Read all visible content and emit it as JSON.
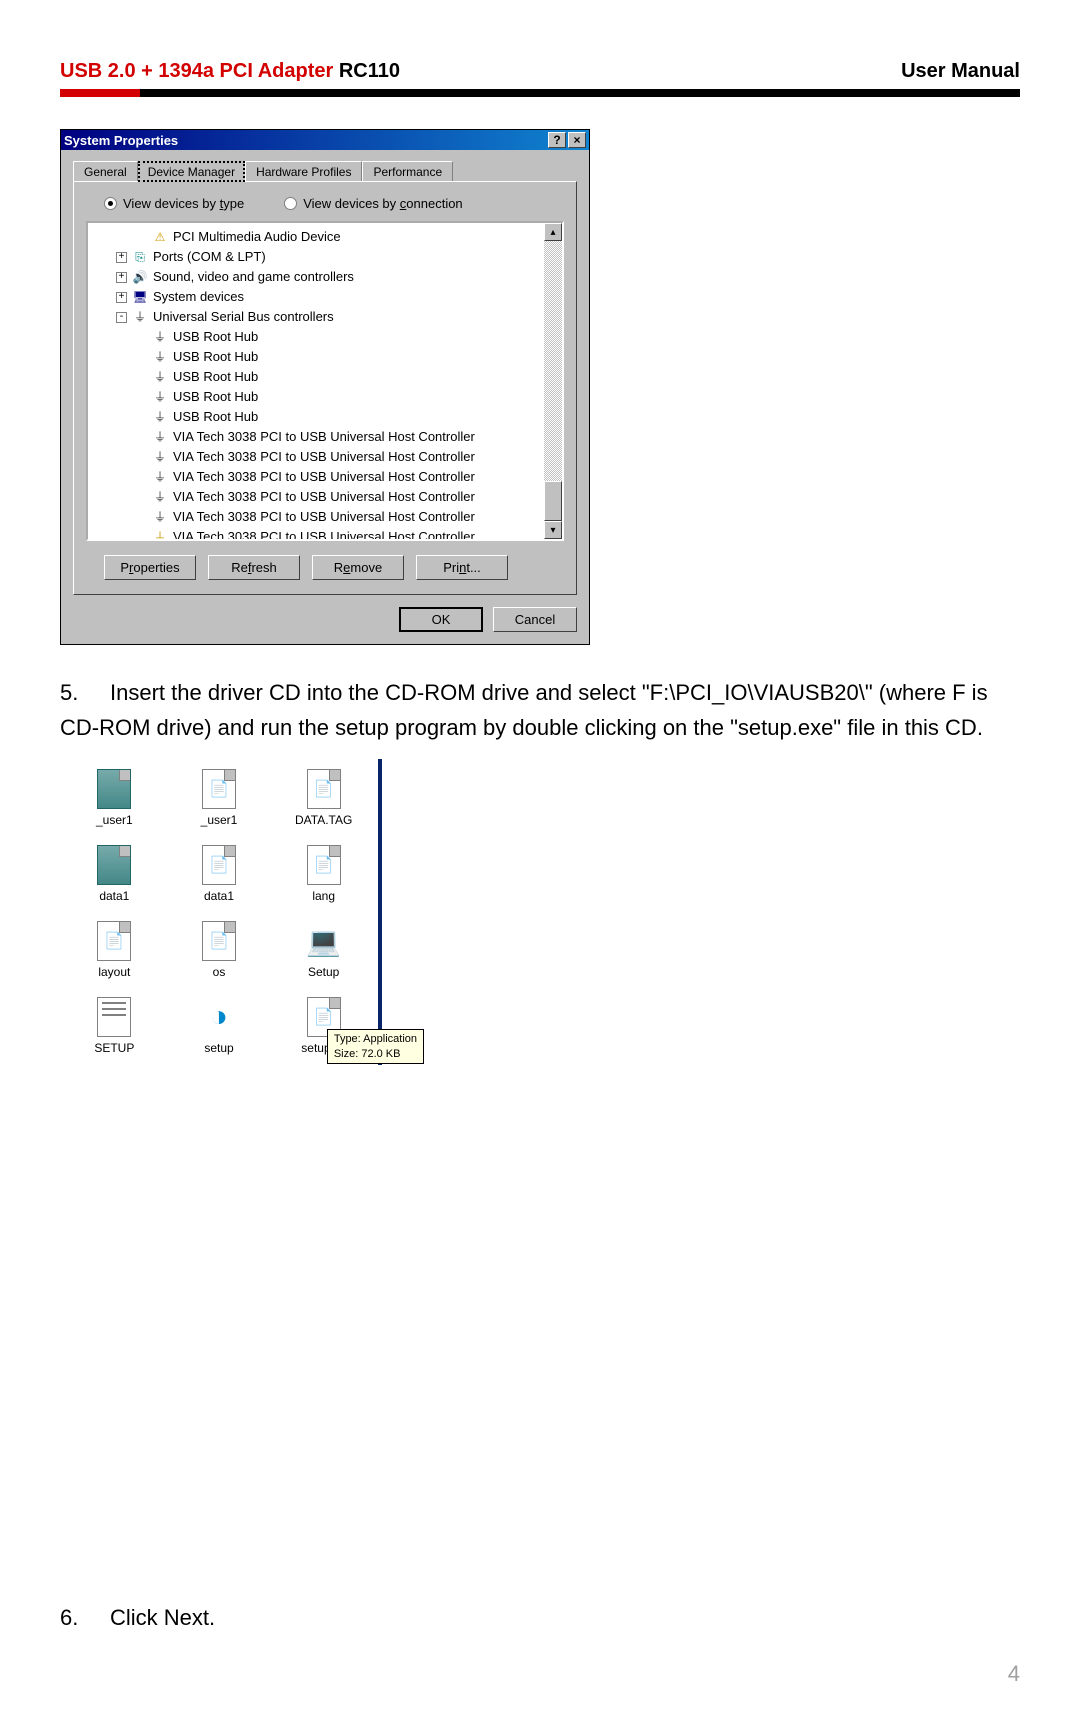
{
  "header": {
    "title_red": "USB 2.0 + 1394a PCI Adapter ",
    "title_black": "RC110",
    "right": "User Manual"
  },
  "window": {
    "title": "System Properties",
    "help_label": "?",
    "close_label": "×",
    "tabs": [
      "General",
      "Device Manager",
      "Hardware Profiles",
      "Performance"
    ],
    "active_tab": 1,
    "radio_type": "View devices by type",
    "radio_type_underline": "t",
    "radio_conn": "View devices by connection",
    "radio_conn_underline": "c",
    "tree": [
      {
        "level": 2,
        "expander": "",
        "icon": "warn",
        "text": "PCI Multimedia Audio Device"
      },
      {
        "level": 1,
        "expander": "+",
        "icon": "port",
        "text": "Ports (COM & LPT)"
      },
      {
        "level": 1,
        "expander": "+",
        "icon": "sound",
        "text": "Sound, video and game controllers"
      },
      {
        "level": 1,
        "expander": "+",
        "icon": "sys",
        "text": "System devices"
      },
      {
        "level": 1,
        "expander": "-",
        "icon": "usb",
        "text": "Universal Serial Bus controllers"
      },
      {
        "level": 2,
        "expander": "",
        "icon": "usb",
        "text": "USB Root Hub"
      },
      {
        "level": 2,
        "expander": "",
        "icon": "usb",
        "text": "USB Root Hub"
      },
      {
        "level": 2,
        "expander": "",
        "icon": "usb",
        "text": "USB Root Hub"
      },
      {
        "level": 2,
        "expander": "",
        "icon": "usb",
        "text": "USB Root Hub"
      },
      {
        "level": 2,
        "expander": "",
        "icon": "usb",
        "text": "USB Root Hub"
      },
      {
        "level": 2,
        "expander": "",
        "icon": "usb",
        "text": "VIA Tech 3038 PCI to USB Universal Host Controller"
      },
      {
        "level": 2,
        "expander": "",
        "icon": "usb",
        "text": "VIA Tech 3038 PCI to USB Universal Host Controller"
      },
      {
        "level": 2,
        "expander": "",
        "icon": "usb",
        "text": "VIA Tech 3038 PCI to USB Universal Host Controller"
      },
      {
        "level": 2,
        "expander": "",
        "icon": "usb",
        "text": "VIA Tech 3038 PCI to USB Universal Host Controller"
      },
      {
        "level": 2,
        "expander": "",
        "icon": "usb",
        "text": "VIA Tech 3038 PCI to USB Universal Host Controller"
      },
      {
        "level": 2,
        "expander": "",
        "icon": "usbw",
        "text": "VIA Tech 3038 PCI to USB Universal Host Controller"
      }
    ],
    "buttons": {
      "properties": "Properties",
      "refresh": "Refresh",
      "remove": "Remove",
      "print": "Print...",
      "ok": "OK",
      "cancel": "Cancel"
    }
  },
  "step5": {
    "number": "5.",
    "text": "Insert the driver CD into the CD-ROM drive and select \"F:\\PCI_IO\\VIAUSB20\\\" (where F is CD-ROM drive) and run the setup program by double clicking on the \"setup.exe\" file in this CD."
  },
  "files": {
    "items": [
      {
        "name": "_user1",
        "type": "cab"
      },
      {
        "name": "_user1",
        "type": "doc"
      },
      {
        "name": "DATA.TAG",
        "type": "doc"
      },
      {
        "name": "data1",
        "type": "cab"
      },
      {
        "name": "data1",
        "type": "doc"
      },
      {
        "name": "lang",
        "type": "doc"
      },
      {
        "name": "layout",
        "type": "doc"
      },
      {
        "name": "os",
        "type": "doc"
      },
      {
        "name": "Setup",
        "type": "setup"
      },
      {
        "name": "SETUP",
        "type": "ini"
      },
      {
        "name": "setup",
        "type": "ins"
      },
      {
        "name": "setup.lid",
        "type": "doc"
      }
    ],
    "tooltip": {
      "line1": "Type: Application",
      "line2": "Size: 72.0 KB"
    }
  },
  "step6": {
    "number": "6.",
    "text": "Click Next."
  },
  "page_number": "4"
}
